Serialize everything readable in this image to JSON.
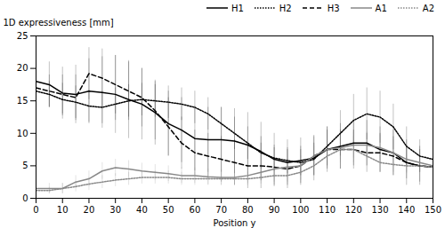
{
  "chart_data": {
    "type": "line",
    "xlabel": "Position y",
    "ylabel": "1D expressiveness [mm]",
    "x": [
      0,
      5,
      10,
      15,
      20,
      25,
      30,
      35,
      40,
      45,
      50,
      55,
      60,
      65,
      70,
      75,
      80,
      85,
      90,
      95,
      100,
      105,
      110,
      115,
      120,
      125,
      130,
      135,
      140,
      145,
      150
    ],
    "series": [
      {
        "name": "H1",
        "color": "#000000",
        "line_style": "solid",
        "values": [
          18.0,
          17.5,
          16.2,
          16.0,
          16.5,
          16.3,
          16.0,
          15.2,
          14.5,
          13.2,
          11.5,
          10.5,
          9.2,
          9.0,
          9.0,
          8.8,
          8.2,
          7.2,
          6.0,
          5.5,
          5.8,
          6.2,
          7.5,
          8.0,
          8.5,
          8.5,
          7.5,
          7.0,
          5.5,
          5.0,
          4.8
        ],
        "errors": [
          3.5,
          3.5,
          4.0,
          4.5,
          5.0,
          5.5,
          6.0,
          6.0,
          5.5,
          5.0,
          5.0,
          5.0,
          5.0,
          5.0,
          5.0,
          5.0,
          5.0,
          4.5,
          4.0,
          3.5,
          3.5,
          3.5,
          3.5,
          3.5,
          3.5,
          3.5,
          3.5,
          3.5,
          3.5,
          3.0,
          3.0
        ]
      },
      {
        "name": "H2",
        "color": "#000000",
        "line_style": "dotted",
        "values": [
          16.5,
          16.0,
          15.2,
          14.8,
          14.2,
          14.0,
          14.5,
          15.0,
          15.2,
          15.0,
          14.8,
          14.5,
          14.0,
          13.0,
          11.5,
          10.0,
          8.5,
          7.0,
          6.2,
          5.8,
          5.5,
          6.0,
          8.0,
          10.0,
          12.0,
          13.0,
          12.5,
          11.0,
          8.0,
          6.5,
          6.0
        ],
        "errors": [
          2.0,
          2.0,
          2.5,
          2.5,
          2.5,
          2.5,
          2.5,
          2.5,
          2.5,
          2.5,
          2.5,
          2.5,
          2.5,
          2.5,
          2.5,
          2.5,
          2.5,
          2.5,
          2.0,
          2.0,
          2.0,
          2.5,
          3.0,
          3.5,
          4.0,
          4.0,
          4.0,
          3.5,
          3.0,
          2.5,
          2.5
        ]
      },
      {
        "name": "H3",
        "color": "#000000",
        "line_style": "dashed",
        "values": [
          17.0,
          16.5,
          16.0,
          15.5,
          19.2,
          18.5,
          17.5,
          16.5,
          15.5,
          13.5,
          11.0,
          8.5,
          7.0,
          6.5,
          6.0,
          5.5,
          5.0,
          5.0,
          4.8,
          4.5,
          5.0,
          6.5,
          7.5,
          7.5,
          7.5,
          7.0,
          7.0,
          6.5,
          5.5,
          5.0,
          4.8
        ],
        "errors": [
          2.5,
          2.5,
          3.0,
          3.5,
          4.0,
          4.5,
          4.5,
          4.5,
          4.5,
          4.5,
          4.5,
          4.0,
          3.5,
          3.5,
          3.5,
          3.5,
          3.5,
          3.5,
          3.0,
          3.0,
          3.0,
          3.0,
          3.0,
          3.0,
          3.0,
          3.0,
          3.0,
          3.0,
          2.5,
          2.5,
          2.5
        ]
      },
      {
        "name": "A1",
        "color": "#888888",
        "line_style": "solid",
        "values": [
          1.5,
          1.5,
          1.5,
          2.5,
          3.0,
          4.2,
          4.7,
          4.5,
          4.2,
          4.0,
          3.8,
          3.5,
          3.5,
          3.3,
          3.2,
          3.2,
          3.5,
          4.0,
          4.5,
          4.8,
          5.0,
          6.5,
          7.5,
          7.8,
          8.2,
          8.2,
          7.8,
          7.0,
          6.0,
          5.5,
          5.0
        ],
        "errors": [
          0.8,
          0.8,
          0.8,
          1.0,
          1.2,
          1.3,
          1.3,
          1.3,
          1.2,
          1.2,
          1.2,
          1.2,
          1.2,
          1.2,
          1.2,
          1.2,
          1.2,
          1.2,
          1.3,
          1.3,
          1.5,
          1.5,
          1.8,
          1.8,
          2.0,
          2.0,
          2.0,
          2.0,
          2.0,
          1.5,
          1.5
        ]
      },
      {
        "name": "A2",
        "color": "#888888",
        "line_style": "dotted",
        "values": [
          1.2,
          1.2,
          1.5,
          1.8,
          2.2,
          2.5,
          2.8,
          3.0,
          3.2,
          3.2,
          3.2,
          3.0,
          3.0,
          3.0,
          3.0,
          3.0,
          3.0,
          3.2,
          3.5,
          3.5,
          4.0,
          5.0,
          6.5,
          7.5,
          7.5,
          6.5,
          5.5,
          5.2,
          5.0,
          5.0,
          4.8
        ],
        "errors": [
          0.5,
          0.5,
          0.8,
          0.8,
          1.0,
          1.0,
          1.0,
          1.0,
          1.0,
          1.0,
          1.0,
          1.0,
          1.0,
          1.0,
          1.0,
          1.0,
          1.0,
          1.0,
          1.0,
          1.0,
          1.2,
          1.5,
          1.8,
          2.0,
          2.0,
          1.5,
          1.5,
          1.2,
          1.2,
          1.0,
          1.0
        ]
      }
    ],
    "xlim": [
      0,
      150
    ],
    "ylim": [
      0,
      25
    ],
    "xticks": [
      0,
      10,
      20,
      30,
      40,
      50,
      60,
      70,
      80,
      90,
      100,
      110,
      120,
      130,
      140,
      150
    ],
    "yticks": [
      0,
      5,
      10,
      15,
      20,
      25
    ],
    "grid": false,
    "legend": "upper right"
  }
}
